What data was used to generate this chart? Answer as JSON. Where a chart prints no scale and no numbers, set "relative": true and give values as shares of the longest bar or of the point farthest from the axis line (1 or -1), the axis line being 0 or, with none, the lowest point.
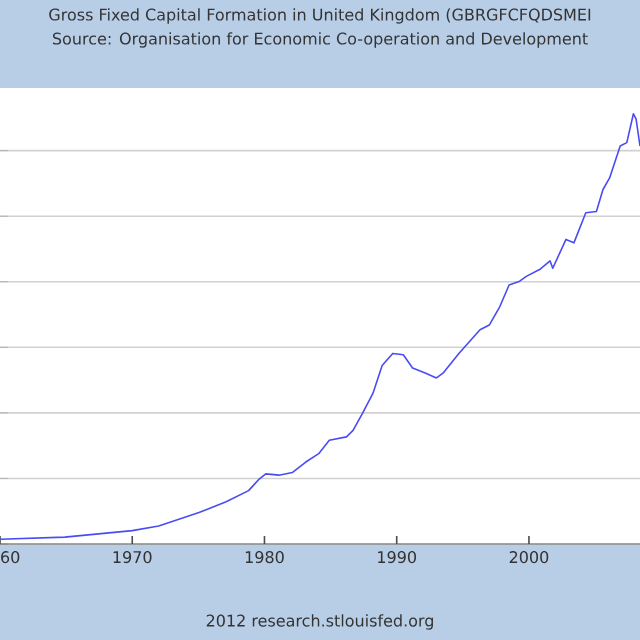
{
  "chart_data": {
    "type": "line",
    "title": "Gross Fixed Capital Formation in United Kingdom (GBRGFCFQDSMEI",
    "subtitle": "Source: Organisation for Economic Co-operation and Development",
    "annotations": [
      "2012 research.stlouisfed.org"
    ],
    "relative": true,
    "grid": "y",
    "xlim": [
      1960,
      2008.4
    ],
    "xticks": [
      {
        "value": 1960,
        "label": "60"
      },
      1970,
      1980,
      1990,
      2000
    ],
    "x": [
      1960.0,
      1964.9,
      1970.0,
      1972.0,
      1975.05,
      1977.1,
      1978.8,
      1979.6,
      1980.1,
      1981.1,
      1982.1,
      1983.1,
      1984.1,
      1984.9,
      1986.2,
      1986.7,
      1987.4,
      1988.2,
      1988.9,
      1989.7,
      1990.5,
      1991.2,
      1992.2,
      1993.0,
      1993.5,
      1994.7,
      1996.3,
      1997.0,
      1997.8,
      1998.5,
      1999.3,
      1999.8,
      2000.8,
      2001.6,
      2001.8,
      2002.8,
      2003.4,
      2004.3,
      2005.1,
      2005.6,
      2006.1,
      2006.9,
      2007.4,
      2007.9,
      2008.1,
      2008.4
    ],
    "series": [
      {
        "color": "#4b4bf5",
        "values": [
          0.011,
          0.016,
          0.031,
          0.042,
          0.073,
          0.098,
          0.124,
          0.151,
          0.163,
          0.16,
          0.166,
          0.19,
          0.21,
          0.241,
          0.249,
          0.264,
          0.303,
          0.35,
          0.415,
          0.443,
          0.44,
          0.409,
          0.397,
          0.386,
          0.397,
          0.443,
          0.498,
          0.509,
          0.552,
          0.602,
          0.611,
          0.622,
          0.638,
          0.658,
          0.641,
          0.708,
          0.7,
          0.77,
          0.773,
          0.824,
          0.851,
          0.925,
          0.933,
          1,
          0.988,
          0.925
        ]
      }
    ]
  }
}
